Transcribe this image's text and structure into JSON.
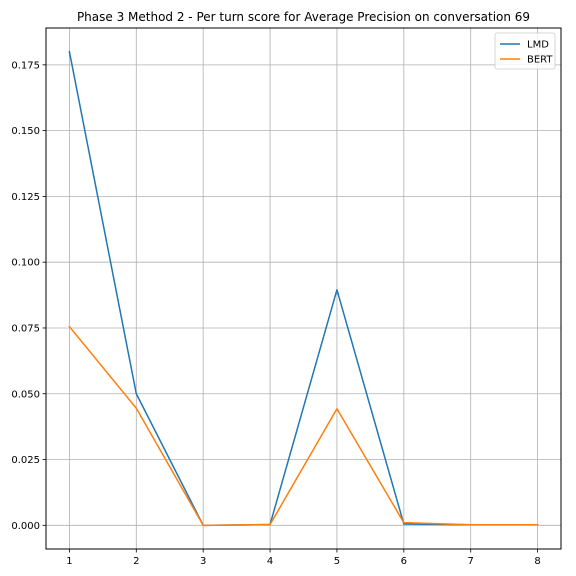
{
  "chart_data": {
    "type": "line",
    "title": "Phase 3 Method 2 - Per turn score for Average Precision on conversation 69",
    "xlabel": "",
    "ylabel": "",
    "x": [
      1,
      2,
      3,
      4,
      5,
      6,
      7,
      8
    ],
    "xticks": [
      "1",
      "2",
      "3",
      "4",
      "5",
      "6",
      "7",
      "8"
    ],
    "yticks": [
      "0.000",
      "0.025",
      "0.050",
      "0.075",
      "0.100",
      "0.125",
      "0.150",
      "0.175"
    ],
    "xlim": [
      0.65,
      8.35
    ],
    "ylim": [
      -0.009,
      0.189
    ],
    "grid": true,
    "legend_position": "top-right",
    "series": [
      {
        "name": "LMD",
        "color": "#1f77b4",
        "values": [
          0.18,
          0.05,
          0.0,
          0.0003,
          0.0895,
          0.0005,
          0.0002,
          0.0002
        ]
      },
      {
        "name": "BERT",
        "color": "#ff7f0e",
        "values": [
          0.0755,
          0.0445,
          0.0,
          0.0003,
          0.0443,
          0.001,
          0.0002,
          0.0002
        ]
      }
    ]
  }
}
